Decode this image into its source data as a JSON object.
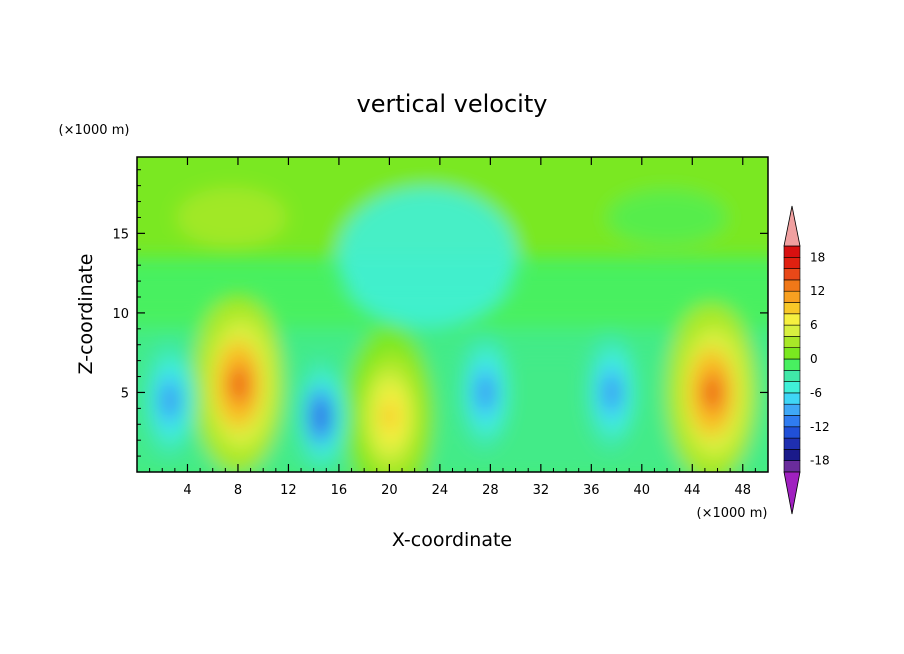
{
  "chart_data": {
    "type": "heatmap",
    "title": "vertical velocity",
    "xlabel": "X-coordinate",
    "ylabel": "Z-coordinate",
    "x_unit": "(×1000 m)",
    "y_unit": "(×1000 m)",
    "xlim": [
      0,
      50
    ],
    "ylim": [
      0,
      19.8
    ],
    "x_ticks": [
      4,
      8,
      12,
      16,
      20,
      24,
      28,
      32,
      36,
      40,
      44,
      48
    ],
    "y_ticks": [
      5,
      10,
      15
    ],
    "colorbar": {
      "levels": [
        -20,
        -18,
        -16,
        -14,
        -12,
        -10,
        -8,
        -6,
        -4,
        -2,
        0,
        2,
        4,
        6,
        8,
        10,
        12,
        14,
        16,
        18,
        20
      ],
      "labeled_levels": [
        18,
        12,
        6,
        0,
        -6,
        -12,
        -18
      ],
      "colors": [
        "#6a2c9c",
        "#1a1a8a",
        "#1f2fb0",
        "#2050d8",
        "#2f7cf0",
        "#3fa8f6",
        "#3fd6f6",
        "#40f0d8",
        "#40e8a8",
        "#48f060",
        "#7ae820",
        "#a8e828",
        "#d8f040",
        "#f6f040",
        "#f8c828",
        "#f8a020",
        "#f07818",
        "#e84818",
        "#e02010",
        "#d81010"
      ],
      "over_color": "#f0a0a0",
      "under_color": "#a020c0"
    },
    "features": [
      {
        "type": "updraft",
        "x": 8,
        "z": 5.5,
        "peak": 14
      },
      {
        "type": "updraft",
        "x": 20,
        "z": 3.5,
        "peak": 8
      },
      {
        "type": "updraft",
        "x": 45.5,
        "z": 5,
        "peak": 14
      },
      {
        "type": "downdraft",
        "x": 2.5,
        "z": 4.5,
        "peak": -12
      },
      {
        "type": "downdraft",
        "x": 14.5,
        "z": 3.5,
        "peak": -14
      },
      {
        "type": "downdraft",
        "x": 27.5,
        "z": 5,
        "peak": -12
      },
      {
        "type": "downdraft",
        "x": 37.5,
        "z": 5,
        "peak": -12
      }
    ]
  }
}
